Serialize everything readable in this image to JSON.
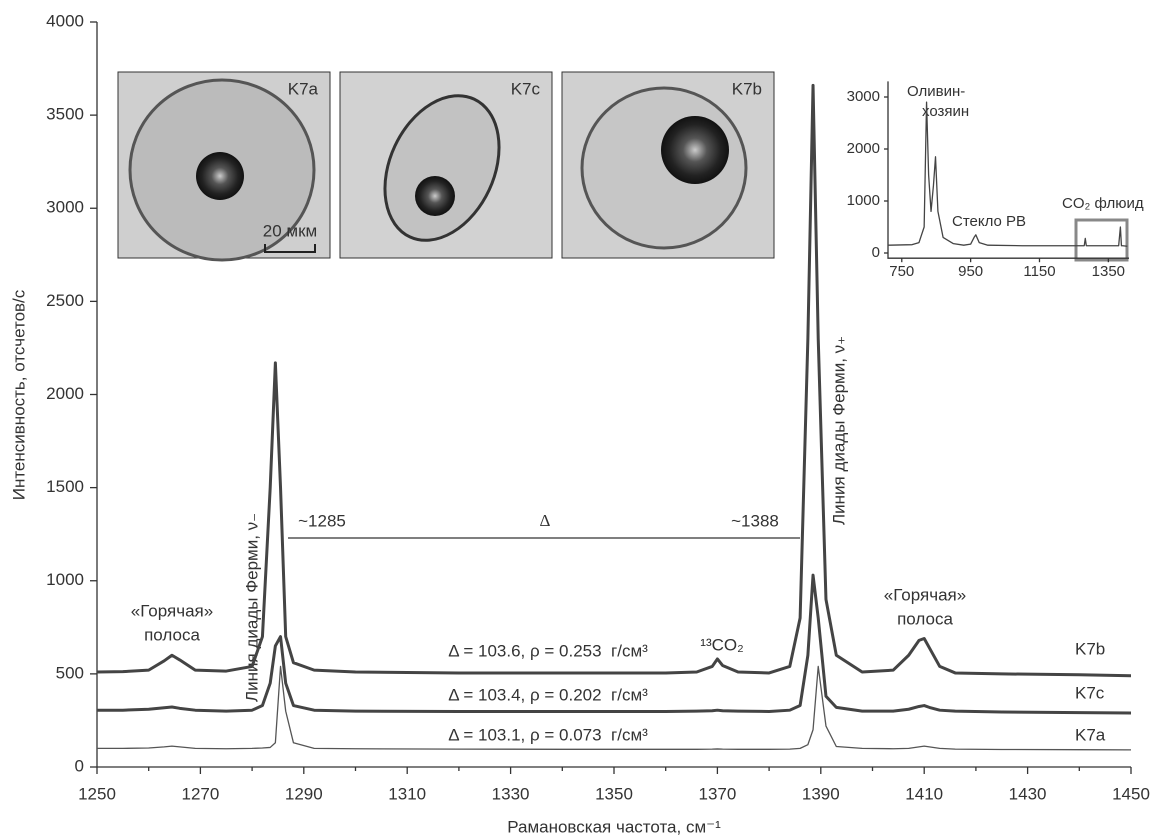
{
  "chart_data": [
    {
      "type": "line",
      "xlabel": "Рамановская частота, см⁻¹",
      "ylabel": "Интенсивность, отсчетов/с",
      "xlim": [
        1250,
        1450
      ],
      "ylim": [
        0,
        4000
      ],
      "xticks": [
        1250,
        1270,
        1290,
        1310,
        1330,
        1350,
        1370,
        1390,
        1410,
        1430,
        1450
      ],
      "xminorticks": [
        1260,
        1280,
        1300,
        1320,
        1340,
        1360,
        1380,
        1400,
        1420,
        1440
      ],
      "yticks": [
        0,
        500,
        1000,
        1500,
        2000,
        2500,
        3000,
        3500,
        4000
      ],
      "x": [
        1250,
        1255,
        1260,
        1263,
        1264.5,
        1266,
        1269,
        1275,
        1280,
        1282,
        1283.5,
        1284.5,
        1285.5,
        1286.5,
        1288,
        1292,
        1300,
        1320,
        1340,
        1360,
        1366,
        1369,
        1370,
        1371,
        1374,
        1380,
        1384,
        1386,
        1387.5,
        1388.5,
        1389.5,
        1391,
        1393,
        1398,
        1404,
        1407,
        1409,
        1410,
        1411,
        1413,
        1416,
        1425,
        1440,
        1450
      ],
      "series": [
        {
          "name": "K7b",
          "color": "#444444",
          "linewidth": 3,
          "values": [
            510,
            512,
            520,
            570,
            600,
            575,
            520,
            515,
            540,
            700,
            1500,
            2170,
            1500,
            700,
            560,
            520,
            510,
            505,
            505,
            505,
            510,
            540,
            580,
            545,
            510,
            505,
            540,
            800,
            2300,
            3660,
            2300,
            900,
            600,
            510,
            520,
            600,
            680,
            690,
            640,
            540,
            505,
            500,
            495,
            490
          ]
        },
        {
          "name": "K7c",
          "color": "#444444",
          "linewidth": 3,
          "values": [
            305,
            305,
            310,
            318,
            322,
            315,
            305,
            300,
            305,
            330,
            450,
            650,
            700,
            450,
            330,
            305,
            300,
            298,
            298,
            298,
            300,
            302,
            305,
            302,
            300,
            298,
            305,
            330,
            600,
            1030,
            800,
            380,
            320,
            300,
            300,
            310,
            325,
            330,
            320,
            305,
            300,
            295,
            292,
            290
          ]
        },
        {
          "name": "K7a",
          "color": "#555555",
          "linewidth": 1.3,
          "values": [
            100,
            100,
            102,
            108,
            112,
            108,
            100,
            98,
            100,
            102,
            105,
            130,
            540,
            300,
            130,
            100,
            98,
            96,
            95,
            95,
            95,
            96,
            97,
            96,
            95,
            95,
            96,
            100,
            120,
            200,
            540,
            220,
            110,
            100,
            98,
            100,
            108,
            112,
            108,
            100,
            96,
            94,
            93,
            92
          ]
        }
      ],
      "annotations": [
        "«Горячая»",
        "полоса",
        "«Горячая»",
        "полоса",
        "Линия диады Ферми, ν₋",
        "Линия диады Ферми, ν₊",
        "~1285",
        "Δ",
        "~1388",
        "Δ = 103.6, ρ = 0.253  г/см³",
        "Δ = 103.4, ρ = 0.202  г/см³",
        "Δ = 103.1, ρ = 0.073  г/см³",
        "¹³CO₂"
      ],
      "images": [
        "K7a",
        "K7c",
        "K7b"
      ],
      "scale_bar": "20 мкм"
    },
    {
      "type": "line",
      "xlim": [
        710,
        1410
      ],
      "ylim": [
        -100,
        3300
      ],
      "xticks": [
        750,
        950,
        1150,
        1350
      ],
      "yticks": [
        0,
        1000,
        2000,
        3000
      ],
      "x": [
        710,
        780,
        800,
        815,
        822,
        828,
        835,
        842,
        848,
        855,
        870,
        900,
        930,
        950,
        960,
        965,
        975,
        1000,
        1100,
        1200,
        1280,
        1283,
        1286,
        1290,
        1380,
        1385,
        1388,
        1392,
        1405
      ],
      "series": [
        {
          "color": "#444444",
          "linewidth": 1.3,
          "values": [
            150,
            160,
            200,
            500,
            2900,
            1500,
            800,
            1300,
            1850,
            800,
            300,
            180,
            150,
            170,
            300,
            350,
            200,
            150,
            140,
            140,
            140,
            280,
            140,
            140,
            140,
            500,
            140,
            140,
            130
          ]
        }
      ],
      "annotations": [
        "Оливин-",
        "хозяин",
        "Стекло РВ",
        "CO₂ флюид"
      ]
    }
  ]
}
